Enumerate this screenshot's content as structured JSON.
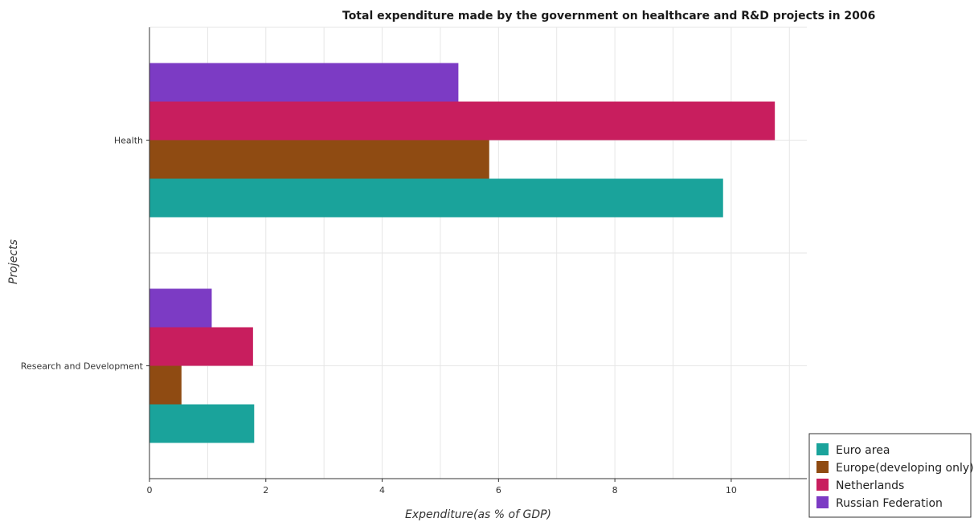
{
  "chart_data": {
    "type": "bar",
    "orientation": "horizontal",
    "title": "Total expenditure made by the government on healthcare and R&D projects in 2006",
    "xlabel": "Expenditure(as % of GDP)",
    "ylabel": "Projects",
    "categories": [
      "Health",
      "Research and Development"
    ],
    "xlim": [
      0,
      11.3
    ],
    "xticks": [
      0,
      2,
      4,
      6,
      8,
      10
    ],
    "xtick_labels": [
      "0",
      "2",
      "4",
      "6",
      "8",
      "10"
    ],
    "grid": true,
    "legend_position": "bottom-right",
    "series": [
      {
        "name": "Euro area",
        "color": "#1aa39b",
        "values": [
          9.86,
          1.8
        ]
      },
      {
        "name": "Europe(developing only)",
        "color": "#8f4b12",
        "values": [
          5.84,
          0.55
        ]
      },
      {
        "name": "Netherlands",
        "color": "#c81e5e",
        "values": [
          10.75,
          1.78
        ]
      },
      {
        "name": "Russian Federation",
        "color": "#7c3bc4",
        "values": [
          5.31,
          1.07
        ]
      }
    ]
  }
}
